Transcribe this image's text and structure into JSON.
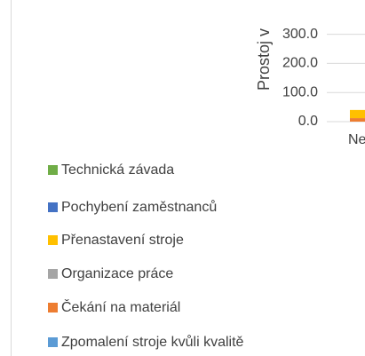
{
  "chart_data": {
    "type": "bar",
    "stacked": true,
    "y_label": "Prostoj v",
    "categories": [
      "Ne"
    ],
    "ylim": [
      0,
      350
    ],
    "yticks": [
      {
        "value": 0,
        "label": "0.0"
      },
      {
        "value": 100,
        "label": "100.0"
      },
      {
        "value": 200,
        "label": "200.0"
      },
      {
        "value": 300,
        "label": "300.0"
      }
    ],
    "grid": true,
    "series": [
      {
        "name": "Technická závada",
        "color": "#70ad47",
        "values": [
          0
        ]
      },
      {
        "name": "Pochybení zaměstnanců",
        "color": "#4472c4",
        "values": [
          0
        ]
      },
      {
        "name": "Přenastavení stroje",
        "color": "#ffc000",
        "values": [
          28
        ]
      },
      {
        "name": "Organizace práce",
        "color": "#a5a5a5",
        "values": [
          0
        ]
      },
      {
        "name": "Čekání na materiál",
        "color": "#ed7d31",
        "values": [
          12
        ]
      },
      {
        "name": "Zpomalení stroje kvůli kvalitě",
        "color": "#5b9bd5",
        "values": [
          0
        ]
      }
    ]
  }
}
